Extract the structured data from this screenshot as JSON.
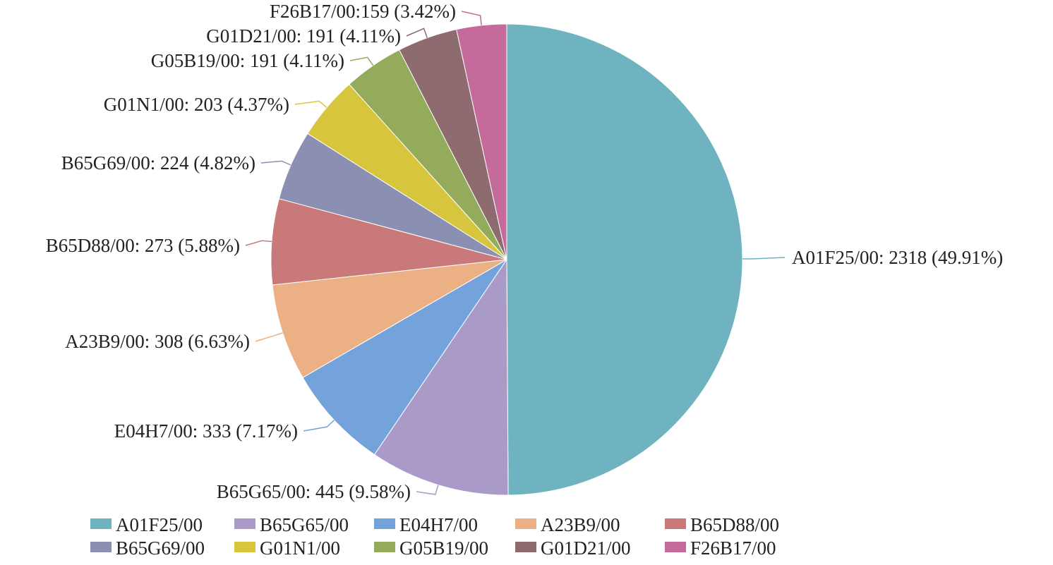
{
  "chart_data": {
    "type": "pie",
    "slices": [
      {
        "name": "A01F25/00",
        "value": 2318,
        "percent": "49.91%",
        "label": "A01F25/00: 2318 (49.91%)",
        "color": "#6fb3c0"
      },
      {
        "name": "B65G65/00",
        "value": 445,
        "percent": "9.58%",
        "label": "B65G65/00: 445 (9.58%)",
        "color": "#a99ac8"
      },
      {
        "name": "E04H7/00",
        "value": 333,
        "percent": "7.17%",
        "label": "E04H7/00: 333 (7.17%)",
        "color": "#74a3dc"
      },
      {
        "name": "A23B9/00",
        "value": 308,
        "percent": "6.63%",
        "label": "A23B9/00: 308 (6.63%)",
        "color": "#ebb084"
      },
      {
        "name": "B65D88/00",
        "value": 273,
        "percent": "5.88%",
        "label": "B65D88/00: 273 (5.88%)",
        "color": "#c97979"
      },
      {
        "name": "B65G69/00",
        "value": 224,
        "percent": "4.82%",
        "label": "B65G69/00: 224 (4.82%)",
        "color": "#8b8fb1"
      },
      {
        "name": "G01N1/00",
        "value": 203,
        "percent": "4.37%",
        "label": "G01N1/00: 203 (4.37%)",
        "color": "#d8c53e"
      },
      {
        "name": "G05B19/00",
        "value": 191,
        "percent": "4.11%",
        "label": "G05B19/00: 191 (4.11%)",
        "color": "#93ab5a"
      },
      {
        "name": "G01D21/00",
        "value": 191,
        "percent": "4.11%",
        "label": "G01D21/00: 191 (4.11%)",
        "color": "#8e6b6f"
      },
      {
        "name": "F26B17/00",
        "value": 159,
        "percent": "3.42%",
        "label": "F26B17/00:159 (3.42%)",
        "color": "#c46b9c"
      }
    ],
    "legend_position": "bottom",
    "start": "12 o'clock, clockwise"
  }
}
